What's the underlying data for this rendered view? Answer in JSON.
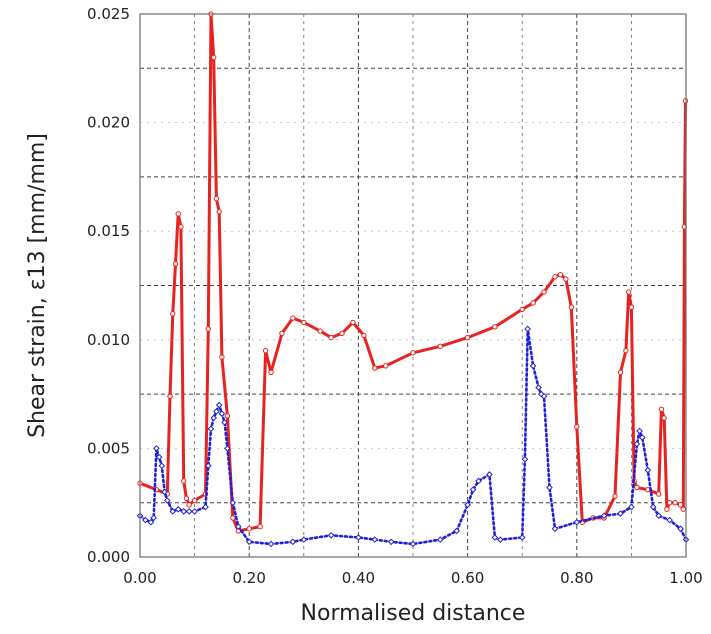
{
  "chart_data": {
    "type": "line",
    "title": "",
    "xlabel": "Normalised distance",
    "ylabel": "Shear strain, ε13 [mm/mm]",
    "xlim": [
      0,
      1
    ],
    "ylim": [
      0,
      0.025
    ],
    "x_ticks": [
      "0.00",
      "0.20",
      "0.40",
      "0.60",
      "0.80",
      "1.00"
    ],
    "x_tick_values": [
      0,
      0.2,
      0.4,
      0.6,
      0.8,
      1.0
    ],
    "y_ticks": [
      "0.000",
      "0.005",
      "0.010",
      "0.015",
      "0.020",
      "0.025"
    ],
    "y_tick_values": [
      0,
      0.005,
      0.01,
      0.015,
      0.02,
      0.025
    ],
    "grid": true,
    "grid_style": "dashed",
    "legend": "none",
    "series": [
      {
        "color": "#e8231f",
        "line_style": "solid",
        "marker": "circle",
        "x": [
          0.0,
          0.03,
          0.05,
          0.055,
          0.06,
          0.065,
          0.07,
          0.075,
          0.08,
          0.085,
          0.09,
          0.1,
          0.12,
          0.125,
          0.13,
          0.135,
          0.14,
          0.145,
          0.15,
          0.16,
          0.17,
          0.18,
          0.2,
          0.22,
          0.23,
          0.24,
          0.26,
          0.28,
          0.3,
          0.33,
          0.35,
          0.37,
          0.39,
          0.41,
          0.43,
          0.45,
          0.5,
          0.55,
          0.6,
          0.65,
          0.7,
          0.72,
          0.74,
          0.76,
          0.77,
          0.78,
          0.79,
          0.8,
          0.81,
          0.83,
          0.85,
          0.87,
          0.88,
          0.89,
          0.895,
          0.9,
          0.905,
          0.91,
          0.93,
          0.95,
          0.955,
          0.96,
          0.965,
          0.97,
          0.98,
          0.99,
          0.995,
          0.997,
          0.999
        ],
        "values": [
          0.0034,
          0.0031,
          0.0029,
          0.0074,
          0.0112,
          0.0135,
          0.0158,
          0.0152,
          0.0035,
          0.0027,
          0.0024,
          0.0026,
          0.0029,
          0.0105,
          0.025,
          0.023,
          0.0165,
          0.0159,
          0.0092,
          0.0065,
          0.0018,
          0.0012,
          0.0013,
          0.0014,
          0.0095,
          0.0085,
          0.0103,
          0.011,
          0.0108,
          0.0104,
          0.0101,
          0.0103,
          0.0108,
          0.0102,
          0.0087,
          0.0088,
          0.0094,
          0.0097,
          0.0101,
          0.0106,
          0.0114,
          0.0117,
          0.0122,
          0.0129,
          0.013,
          0.0128,
          0.0115,
          0.006,
          0.0016,
          0.0018,
          0.0018,
          0.0028,
          0.0085,
          0.0095,
          0.0122,
          0.0115,
          0.0035,
          0.0032,
          0.0031,
          0.0029,
          0.0068,
          0.0064,
          0.0022,
          0.0025,
          0.0025,
          0.0024,
          0.0022,
          0.0152,
          0.021
        ]
      },
      {
        "color": "#1e22d4",
        "line_style": "dotted",
        "marker": "diamond",
        "x": [
          0.0,
          0.01,
          0.02,
          0.025,
          0.03,
          0.035,
          0.04,
          0.045,
          0.05,
          0.06,
          0.07,
          0.08,
          0.09,
          0.1,
          0.12,
          0.125,
          0.13,
          0.135,
          0.14,
          0.145,
          0.15,
          0.155,
          0.16,
          0.17,
          0.18,
          0.2,
          0.24,
          0.28,
          0.3,
          0.35,
          0.4,
          0.43,
          0.46,
          0.5,
          0.55,
          0.58,
          0.6,
          0.61,
          0.62,
          0.64,
          0.65,
          0.66,
          0.7,
          0.705,
          0.71,
          0.72,
          0.73,
          0.735,
          0.74,
          0.75,
          0.76,
          0.8,
          0.85,
          0.88,
          0.9,
          0.91,
          0.915,
          0.92,
          0.93,
          0.94,
          0.95,
          0.97,
          0.99,
          1.0
        ],
        "values": [
          0.0019,
          0.0017,
          0.0016,
          0.0018,
          0.005,
          0.0046,
          0.0042,
          0.003,
          0.0026,
          0.0021,
          0.0022,
          0.0021,
          0.0021,
          0.0021,
          0.0023,
          0.0042,
          0.0059,
          0.0064,
          0.0067,
          0.007,
          0.0066,
          0.0062,
          0.005,
          0.0025,
          0.0014,
          0.0007,
          0.0006,
          0.0007,
          0.0008,
          0.001,
          0.0009,
          0.0008,
          0.0007,
          0.0006,
          0.0008,
          0.0012,
          0.0024,
          0.0031,
          0.0035,
          0.0038,
          0.0009,
          0.0008,
          0.0009,
          0.0045,
          0.0105,
          0.0088,
          0.0078,
          0.0075,
          0.0074,
          0.0032,
          0.0013,
          0.0016,
          0.0019,
          0.002,
          0.0023,
          0.0052,
          0.0058,
          0.0055,
          0.004,
          0.0023,
          0.0019,
          0.0017,
          0.0013,
          0.0008
        ]
      }
    ]
  }
}
